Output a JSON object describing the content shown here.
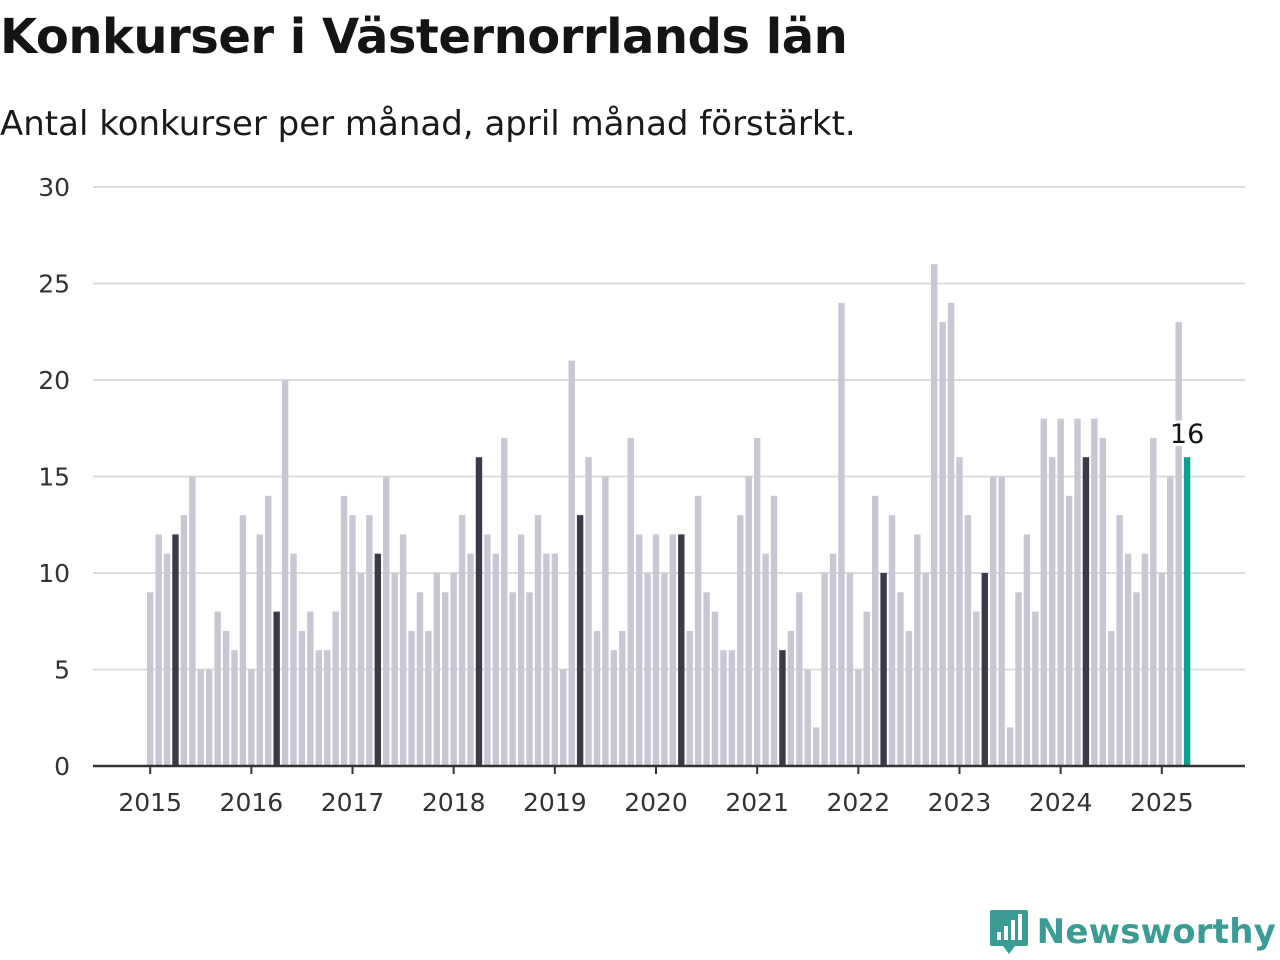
{
  "header": {
    "title": "Konkurser i Västernorrlands län",
    "subtitle": "Antal konkurser per månad, april månad förstärkt."
  },
  "brand": {
    "name": "Newsworthy",
    "icon": "bar-chart-speech-bubble-icon",
    "color": "#3a9c95"
  },
  "colors": {
    "bar_default": "#c8c7d3",
    "bar_april": "#3b3a4a",
    "bar_latest": "#0aa092",
    "gridline": "#dcdcdc",
    "axis": "#333333"
  },
  "chart_data": {
    "type": "bar",
    "title": "Konkurser i Västernorrlands län",
    "subtitle": "Antal konkurser per månad, april månad förstärkt.",
    "xlabel": "",
    "ylabel": "",
    "ylim": [
      0,
      30
    ],
    "yticks": [
      0,
      5,
      10,
      15,
      20,
      25,
      30
    ],
    "grid": true,
    "start": "2015-01",
    "end": "2025-04",
    "xticks": [
      "2015",
      "2016",
      "2017",
      "2018",
      "2019",
      "2020",
      "2021",
      "2022",
      "2023",
      "2024",
      "2025"
    ],
    "highlight_month": "april",
    "annotation": {
      "month": "2025-04",
      "text": "16"
    },
    "series": [
      {
        "values": [
          9,
          12,
          11,
          12,
          13,
          15,
          5,
          5,
          8,
          7,
          6,
          13,
          5,
          12,
          14,
          8,
          20,
          11,
          7,
          8,
          6,
          6,
          8,
          14,
          13,
          10,
          13,
          11,
          15,
          10,
          12,
          7,
          9,
          7,
          10,
          9,
          10,
          13,
          11,
          16,
          12,
          11,
          17,
          9,
          12,
          9,
          13,
          11,
          11,
          5,
          21,
          13,
          16,
          7,
          15,
          6,
          7,
          17,
          12,
          10,
          12,
          10,
          12,
          12,
          7,
          14,
          9,
          8,
          6,
          6,
          13,
          15,
          17,
          11,
          14,
          6,
          7,
          9,
          5,
          2,
          10,
          11,
          24,
          10,
          5,
          8,
          14,
          10,
          13,
          9,
          7,
          12,
          10,
          26,
          23,
          24,
          16,
          13,
          8,
          10,
          15,
          15,
          2,
          9,
          12,
          8,
          18,
          16,
          18,
          14,
          18,
          16,
          18,
          17,
          7,
          13,
          11,
          9,
          11,
          17,
          10,
          15,
          23,
          16
        ]
      }
    ]
  }
}
